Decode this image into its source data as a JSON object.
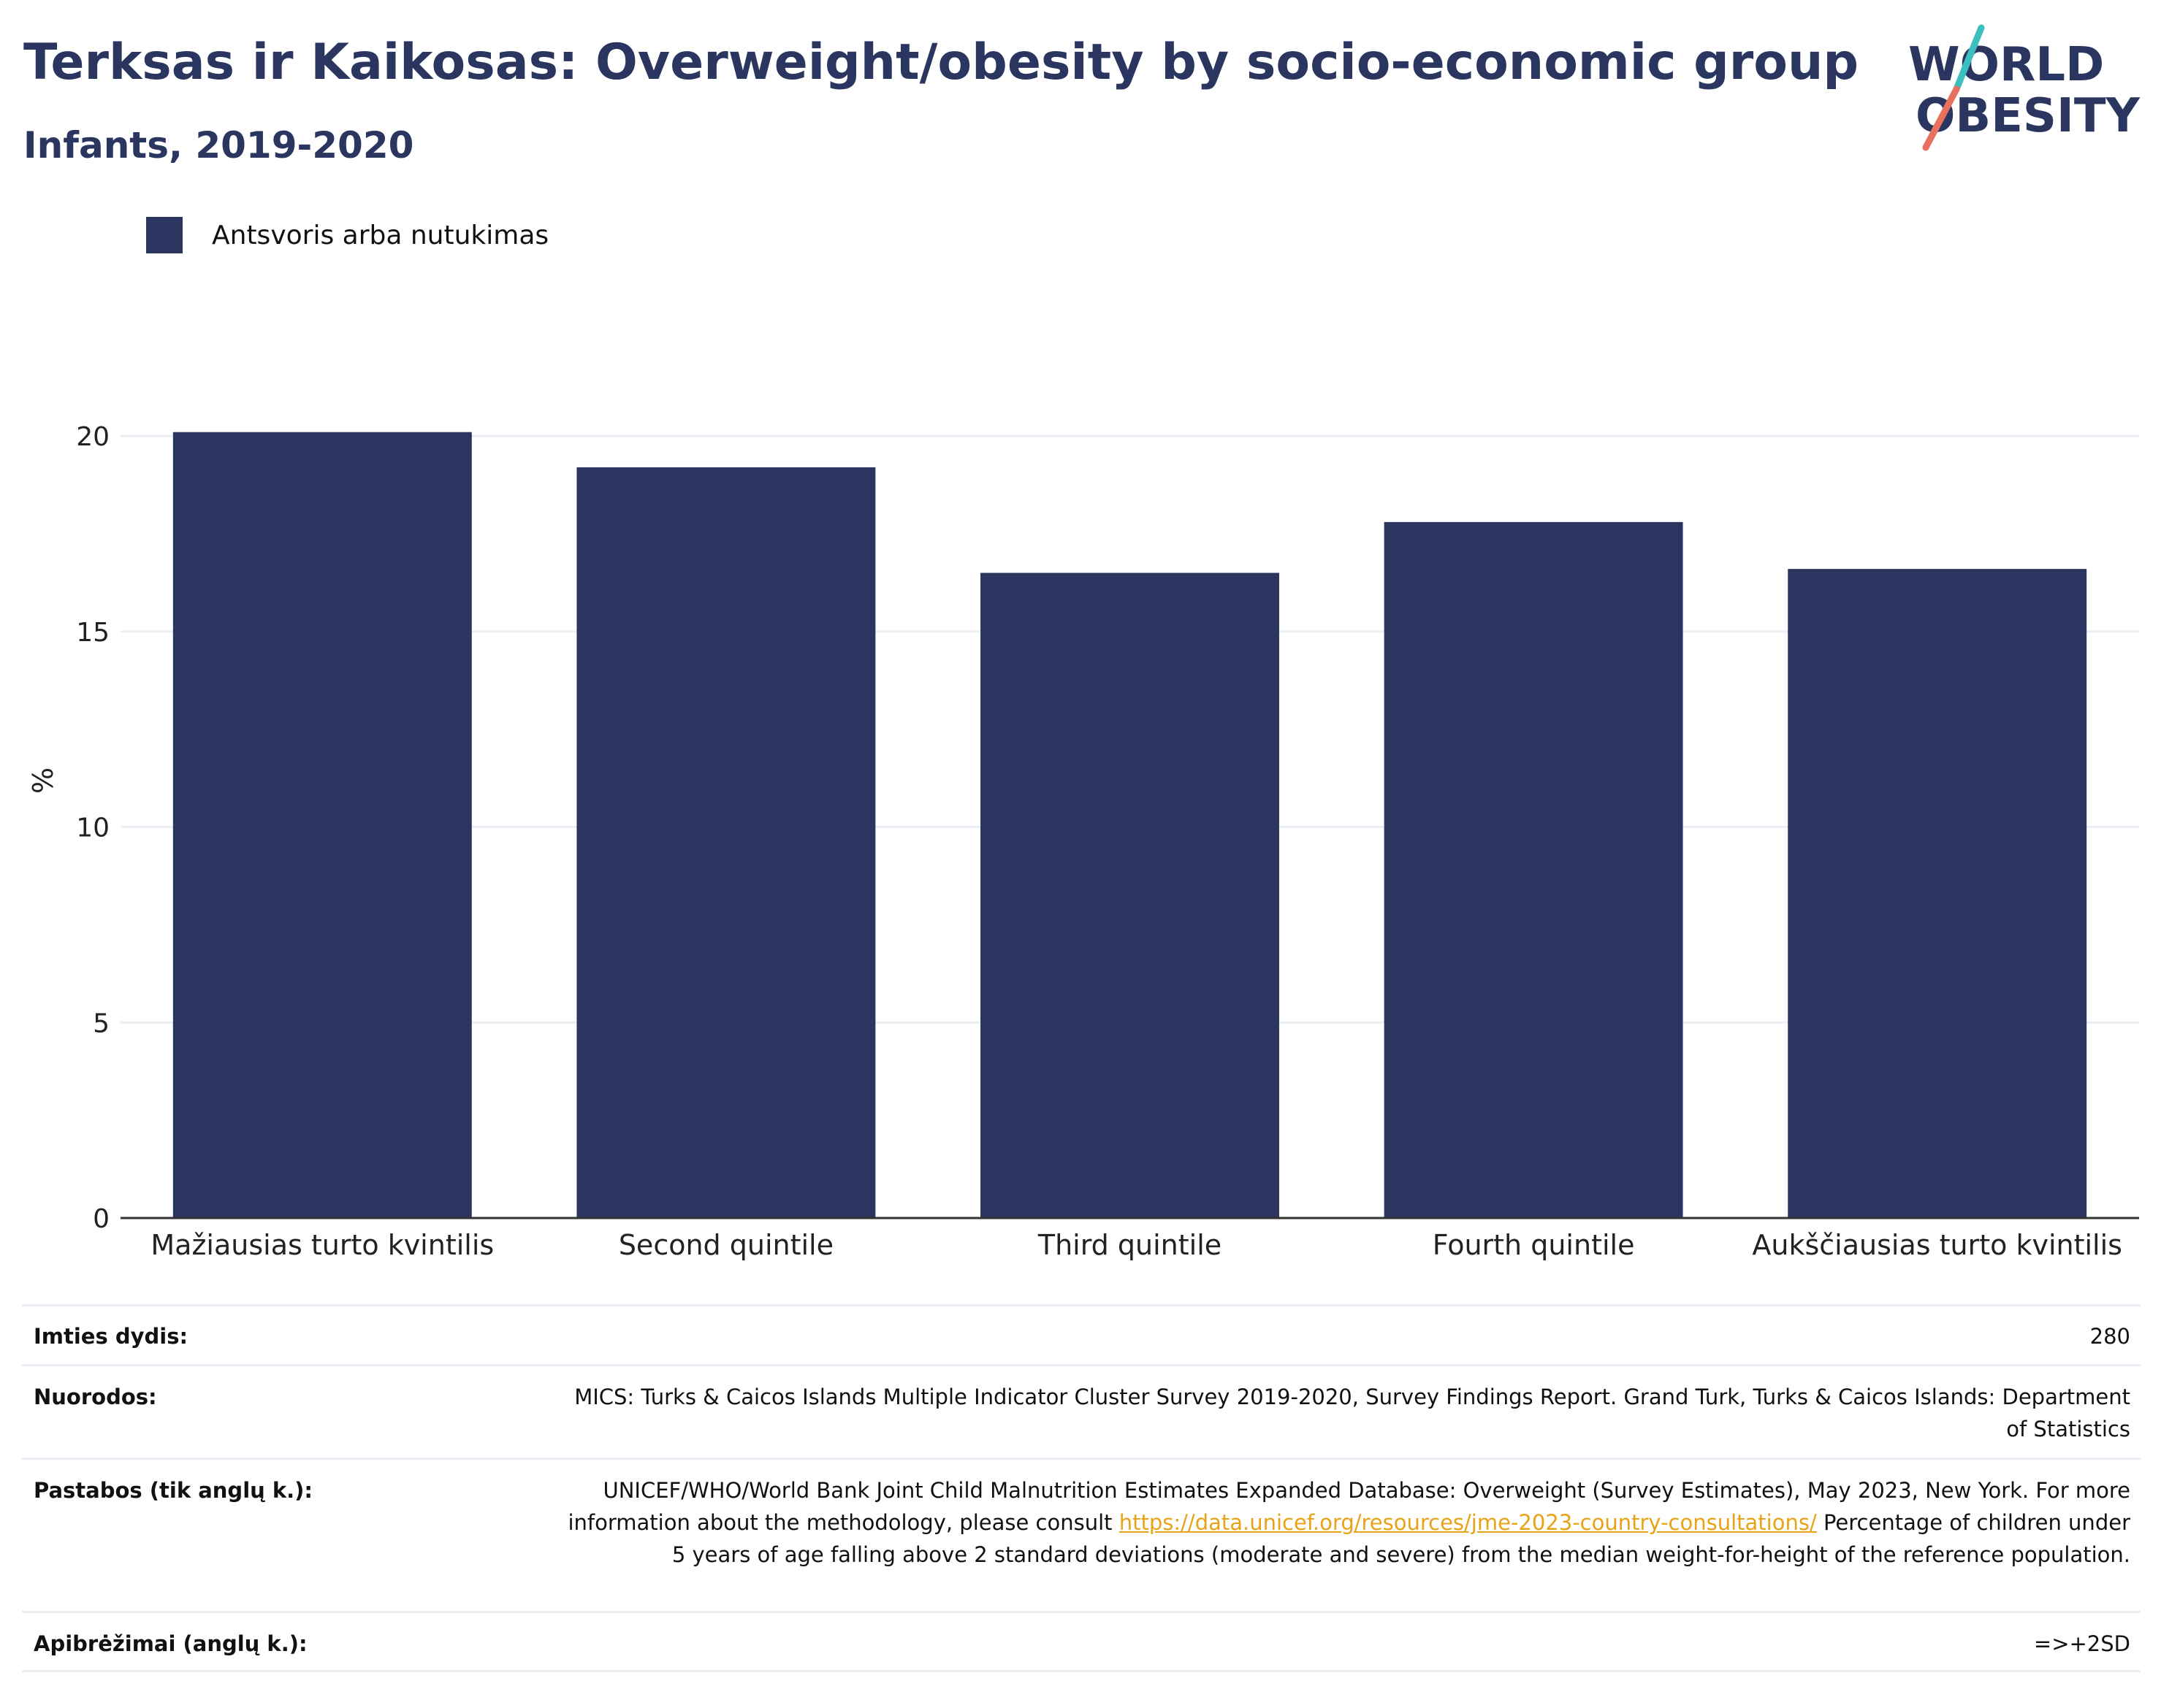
{
  "title": "Terksas ir Kaikosas: Overweight/obesity by socio-economic group",
  "subtitle": "Infants, 2019-2020",
  "logo": {
    "line1": "WORLD",
    "line2": "OBESITY"
  },
  "colors": {
    "bar": "#2a365f",
    "title": "#2a365f",
    "link": "#e8a317",
    "gridline": "#eceef5",
    "logo_teal": "#3bbfbf",
    "logo_coral": "#e8705f"
  },
  "chart_data": {
    "type": "bar",
    "categories": [
      "Mažiausias turto kvintilis",
      "Second quintile",
      "Third quintile",
      "Fourth quintile",
      "Aukščiausias turto kvintilis"
    ],
    "series": [
      {
        "name": "Antsvoris arba nutukimas",
        "values": [
          20.1,
          19.2,
          16.5,
          17.8,
          16.6
        ]
      }
    ],
    "ylabel": "%",
    "xlabel": "",
    "ylim": [
      0,
      22
    ],
    "yticks": [
      0,
      5,
      10,
      15,
      20
    ],
    "grid": true,
    "legend_position": "top-left"
  },
  "info": {
    "sample_size": {
      "label": "Imties dydis:",
      "value": "280"
    },
    "references": {
      "label": "Nuorodos:",
      "value": "MICS: Turks & Caicos Islands Multiple Indicator Cluster Survey 2019-2020, Survey Findings Report. Grand Turk, Turks & Caicos Islands: Department of Statistics"
    },
    "notes": {
      "label": "Pastabos (tik anglų k.):",
      "text_before": "UNICEF/WHO/World Bank Joint Child Malnutrition Estimates Expanded Database: Overweight (Survey Estimates), May 2023, New York. For more information about the methodology, please consult",
      "link": "https://data.unicef.org/resources/jme-2023-country-consultations/",
      "text_after": "Percentage of children under 5 years of age falling above 2 standard deviations (moderate and severe) from the median weight-for-height of the reference population."
    },
    "definitions": {
      "label": "Apibrėžimai (anglų k.):",
      "value": "=>+2SD"
    }
  }
}
